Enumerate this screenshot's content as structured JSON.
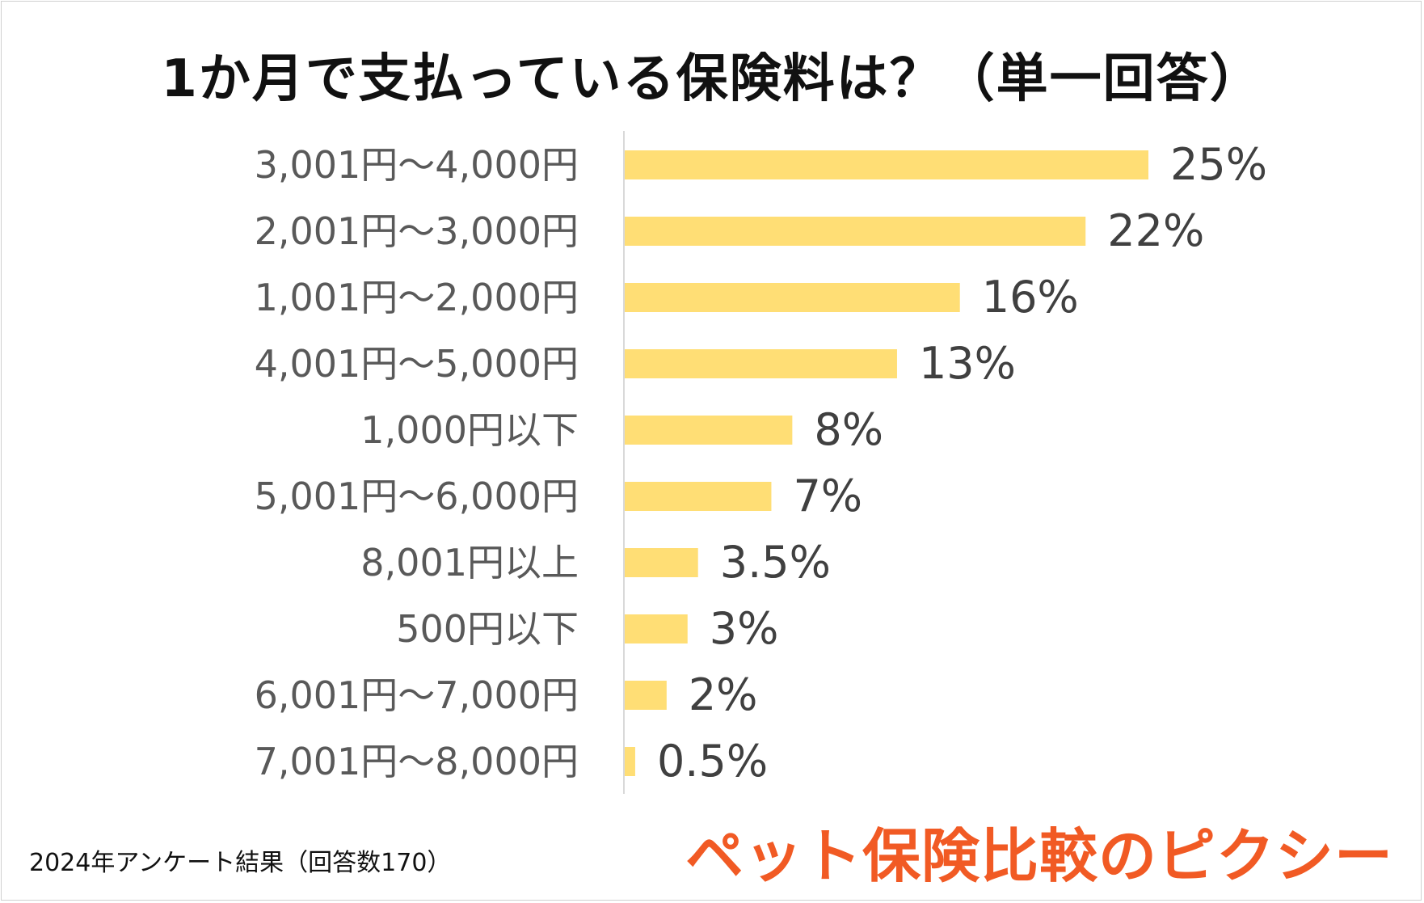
{
  "title": "1か月で支払っている保険料は？（単一回答）",
  "footer_note": "2024年アンケート結果（回答数170）",
  "brand": "ペット保険比較のピクシー",
  "colors": {
    "bar": "#FFDE75",
    "axis": "#d9d9d9",
    "label": "#595959",
    "value": "#404040",
    "brand": "#F15A24"
  },
  "chart_data": {
    "type": "bar",
    "orientation": "horizontal",
    "title": "1か月で支払っている保険料は？（単一回答）",
    "categories": [
      "3,001円〜4,000円",
      "2,001円〜3,000円",
      "1,001円〜2,000円",
      "4,001円〜5,000円",
      "1,000円以下",
      "5,001円〜6,000円",
      "8,001円以上",
      "500円以下",
      "6,001円〜7,000円",
      "7,001円〜8,000円"
    ],
    "values": [
      25,
      22,
      16,
      13,
      8,
      7,
      3.5,
      3,
      2,
      0.5
    ],
    "value_labels": [
      "25%",
      "22%",
      "16%",
      "13%",
      "8%",
      "7%",
      "3.5%",
      "3%",
      "2%",
      "0.5%"
    ],
    "xlim": [
      0,
      25
    ],
    "unit": "%",
    "grid": false,
    "legend": "none"
  }
}
